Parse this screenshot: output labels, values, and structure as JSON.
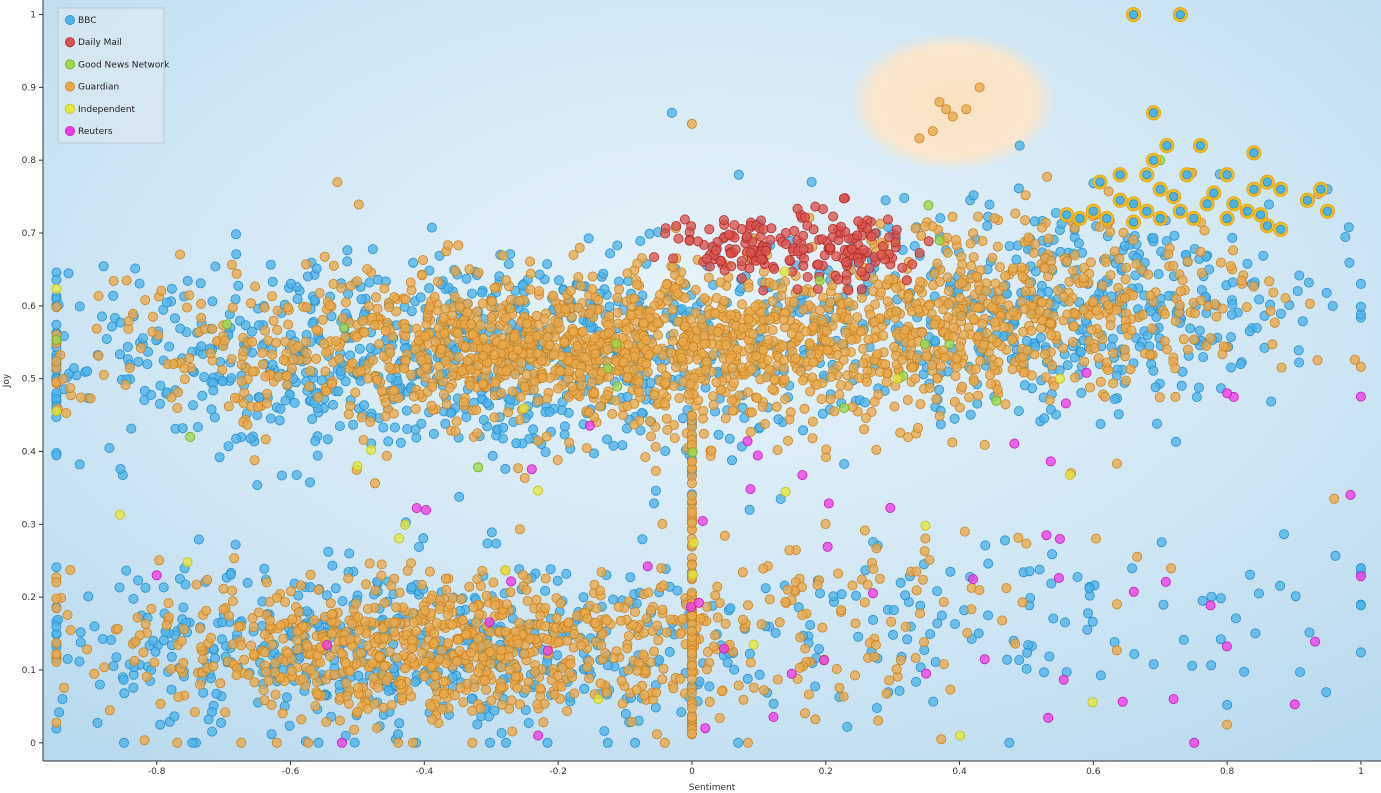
{
  "chart_data": {
    "type": "scatter",
    "title": "",
    "xlabel": "Sentiment",
    "ylabel": "Joy",
    "xlim": [
      -0.97,
      1.03
    ],
    "ylim": [
      -0.025,
      1.02
    ],
    "xticks": [
      "-0.8",
      "-0.6",
      "-0.4",
      "-0.2",
      "0",
      "0.2",
      "0.4",
      "0.6",
      "0.8",
      "1"
    ],
    "xtick_values": [
      -0.8,
      -0.6,
      -0.4,
      -0.2,
      0,
      0.2,
      0.4,
      0.6,
      0.8,
      1
    ],
    "yticks": [
      "0",
      "0.1",
      "0.2",
      "0.3",
      "0.4",
      "0.5",
      "0.6",
      "0.7",
      "0.8",
      "0.9",
      "1"
    ],
    "ytick_values": [
      0,
      0.1,
      0.2,
      0.3,
      0.4,
      0.5,
      0.6,
      0.7,
      0.8,
      0.9,
      1
    ],
    "grid": false,
    "legend_position": "top-left",
    "colors": {
      "plot_background": "#cfe6f4",
      "highlight_ring": "#f2b817",
      "highlight_cloud": "#fbe5c8"
    },
    "series": [
      {
        "name": "BBC",
        "color": "#4fb3e8",
        "stroke": "#2a8fcc",
        "clusters": [
          {
            "cx": -0.35,
            "cy": 0.53,
            "sx": 0.32,
            "sy": 0.07,
            "n": 900
          },
          {
            "cx": 0.55,
            "cy": 0.6,
            "sx": 0.22,
            "sy": 0.07,
            "n": 450
          },
          {
            "cx": -0.45,
            "cy": 0.13,
            "sx": 0.25,
            "sy": 0.06,
            "n": 550
          },
          {
            "cx": 0.45,
            "cy": 0.17,
            "sx": 0.28,
            "sy": 0.06,
            "n": 140
          }
        ],
        "points": [
          {
            "x": 0.66,
            "y": 1.0
          },
          {
            "x": 0.73,
            "y": 1.0
          },
          {
            "x": 0.69,
            "y": 0.865
          },
          {
            "x": 0.84,
            "y": 0.81
          },
          {
            "x": -0.03,
            "y": 0.865
          },
          {
            "x": 0.49,
            "y": 0.82
          },
          {
            "x": 0.07,
            "y": 0.78
          },
          {
            "x": 0.95,
            "y": 0.76
          },
          {
            "x": 0.92,
            "y": 0.745
          }
        ]
      },
      {
        "name": "Daily Mail",
        "color": "#d9534f",
        "stroke": "#b52c28",
        "clusters": [
          {
            "cx": 0.08,
            "cy": 0.68,
            "sx": 0.05,
            "sy": 0.025,
            "n": 90
          },
          {
            "cx": 0.23,
            "cy": 0.68,
            "sx": 0.05,
            "sy": 0.03,
            "n": 110
          }
        ],
        "points": []
      },
      {
        "name": "Good News Network",
        "color": "#9fd94a",
        "stroke": "#6fae22",
        "clusters": [
          {
            "cx": 0.1,
            "cy": 0.55,
            "sx": 0.45,
            "sy": 0.09,
            "n": 14
          }
        ],
        "points": [
          {
            "x": 0.7,
            "y": 0.8
          },
          {
            "x": -0.52,
            "y": 0.57
          },
          {
            "x": 0.37,
            "y": 0.69
          },
          {
            "x": -0.75,
            "y": 0.42
          }
        ]
      },
      {
        "name": "Guardian",
        "color": "#e9a94b",
        "stroke": "#c98423",
        "clusters": [
          {
            "cx": -0.15,
            "cy": 0.54,
            "sx": 0.3,
            "sy": 0.055,
            "n": 1400
          },
          {
            "cx": 0.45,
            "cy": 0.6,
            "sx": 0.2,
            "sy": 0.06,
            "n": 500
          },
          {
            "cx": -0.38,
            "cy": 0.13,
            "sx": 0.22,
            "sy": 0.05,
            "n": 800
          },
          {
            "cx": 0.2,
            "cy": 0.18,
            "sx": 0.2,
            "sy": 0.06,
            "n": 120
          }
        ],
        "points": [
          {
            "x": 0.37,
            "y": 0.88
          },
          {
            "x": 0.39,
            "y": 0.86
          },
          {
            "x": 0.41,
            "y": 0.87
          },
          {
            "x": 0.43,
            "y": 0.9
          },
          {
            "x": 0.34,
            "y": 0.83
          },
          {
            "x": 0.36,
            "y": 0.84
          },
          {
            "x": 0.38,
            "y": 0.87
          },
          {
            "x": -0.53,
            "y": 0.77
          },
          {
            "x": 0.0,
            "y": 0.85
          },
          {
            "x": -0.94,
            "y": 0.5
          },
          {
            "x": 0.96,
            "y": 0.335
          },
          {
            "x": 0.8,
            "y": 0.025
          }
        ]
      },
      {
        "name": "Independent",
        "color": "#e6e83a",
        "stroke": "#c2c11b",
        "clusters": [
          {
            "cx": -0.1,
            "cy": 0.35,
            "sx": 0.4,
            "sy": 0.2,
            "n": 20
          }
        ],
        "points": [
          {
            "x": -0.5,
            "y": 0.38
          },
          {
            "x": -0.14,
            "y": 0.06
          },
          {
            "x": 0.55,
            "y": 0.5
          }
        ]
      },
      {
        "name": "Reuters",
        "color": "#ee3de6",
        "stroke": "#c01cb8",
        "clusters": [
          {
            "cx": 0.2,
            "cy": 0.2,
            "sx": 0.4,
            "sy": 0.15,
            "n": 45
          }
        ],
        "points": [
          {
            "x": 0.53,
            "y": 0.285
          },
          {
            "x": 0.55,
            "y": 0.28
          },
          {
            "x": 0.81,
            "y": 0.475
          },
          {
            "x": 0.8,
            "y": 0.48
          },
          {
            "x": 0.72,
            "y": 0.06
          },
          {
            "x": 0.02,
            "y": 0.02
          },
          {
            "x": -0.23,
            "y": 0.01
          },
          {
            "x": 0.35,
            "y": 0.095
          },
          {
            "x": -0.8,
            "y": 0.23
          }
        ]
      }
    ],
    "vertical_line_points": {
      "x": 0.0,
      "ymin": 0.01,
      "ymax": 0.45,
      "n": 90
    },
    "highlighted_points": [
      {
        "x": 0.66,
        "y": 1.0
      },
      {
        "x": 0.73,
        "y": 1.0
      },
      {
        "x": 0.69,
        "y": 0.865
      },
      {
        "x": 0.84,
        "y": 0.81
      },
      {
        "x": 0.71,
        "y": 0.82
      },
      {
        "x": 0.76,
        "y": 0.82
      },
      {
        "x": 0.69,
        "y": 0.8
      },
      {
        "x": 0.68,
        "y": 0.78
      },
      {
        "x": 0.74,
        "y": 0.78
      },
      {
        "x": 0.8,
        "y": 0.78
      },
      {
        "x": 0.61,
        "y": 0.77
      },
      {
        "x": 0.64,
        "y": 0.78
      },
      {
        "x": 0.86,
        "y": 0.77
      },
      {
        "x": 0.84,
        "y": 0.76
      },
      {
        "x": 0.88,
        "y": 0.76
      },
      {
        "x": 0.94,
        "y": 0.76
      },
      {
        "x": 0.92,
        "y": 0.745
      },
      {
        "x": 0.95,
        "y": 0.73
      },
      {
        "x": 0.7,
        "y": 0.76
      },
      {
        "x": 0.72,
        "y": 0.75
      },
      {
        "x": 0.78,
        "y": 0.755
      },
      {
        "x": 0.77,
        "y": 0.74
      },
      {
        "x": 0.81,
        "y": 0.74
      },
      {
        "x": 0.83,
        "y": 0.73
      },
      {
        "x": 0.85,
        "y": 0.725
      },
      {
        "x": 0.64,
        "y": 0.745
      },
      {
        "x": 0.66,
        "y": 0.74
      },
      {
        "x": 0.6,
        "y": 0.73
      },
      {
        "x": 0.62,
        "y": 0.72
      },
      {
        "x": 0.58,
        "y": 0.72
      },
      {
        "x": 0.56,
        "y": 0.725
      },
      {
        "x": 0.68,
        "y": 0.73
      },
      {
        "x": 0.7,
        "y": 0.72
      },
      {
        "x": 0.73,
        "y": 0.73
      },
      {
        "x": 0.75,
        "y": 0.72
      },
      {
        "x": 0.8,
        "y": 0.72
      },
      {
        "x": 0.86,
        "y": 0.71
      },
      {
        "x": 0.88,
        "y": 0.705
      },
      {
        "x": 0.66,
        "y": 0.715
      }
    ],
    "highlight_cloud": {
      "cx": 0.39,
      "cy": 0.88,
      "rx": 0.155,
      "ry": 0.095
    }
  }
}
